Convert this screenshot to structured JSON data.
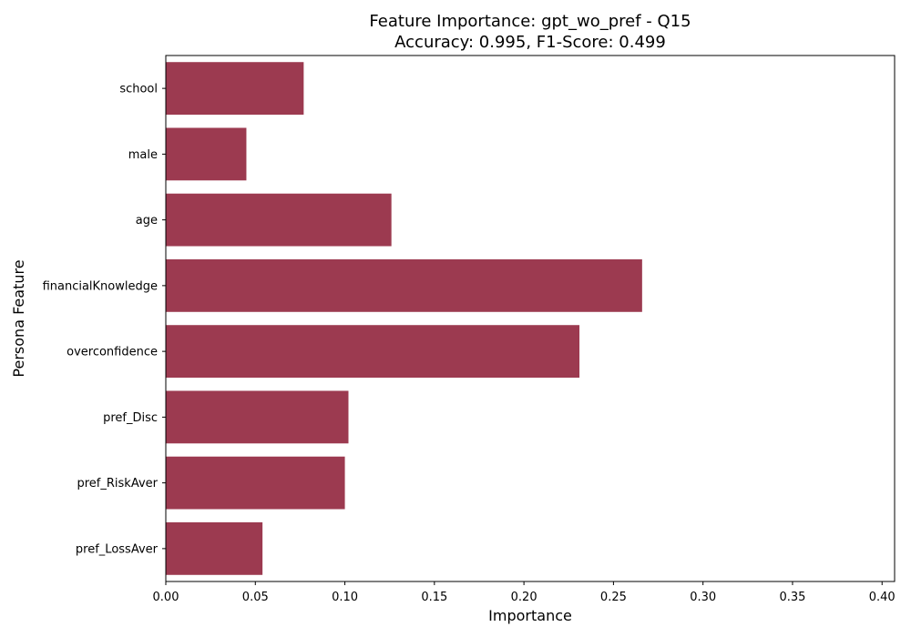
{
  "chart_data": {
    "type": "bar",
    "orientation": "horizontal",
    "title_line1": "Feature Importance: gpt_wo_pref - Q15",
    "title_line2": "Accuracy: 0.995, F1-Score: 0.499",
    "xlabel": "Importance",
    "ylabel": "Persona Feature",
    "categories": [
      "school",
      "male",
      "age",
      "financialKnowledge",
      "overconfidence",
      "pref_Disc",
      "pref_RiskAver",
      "pref_LossAver"
    ],
    "values": [
      0.077,
      0.045,
      0.126,
      0.266,
      0.231,
      0.102,
      0.1,
      0.054
    ],
    "xlim": [
      0.0,
      0.407
    ],
    "xticks": [
      "0.00",
      "0.05",
      "0.10",
      "0.15",
      "0.20",
      "0.25",
      "0.30",
      "0.35",
      "0.40"
    ],
    "grid": false,
    "bar_color": "#9c3a50"
  }
}
